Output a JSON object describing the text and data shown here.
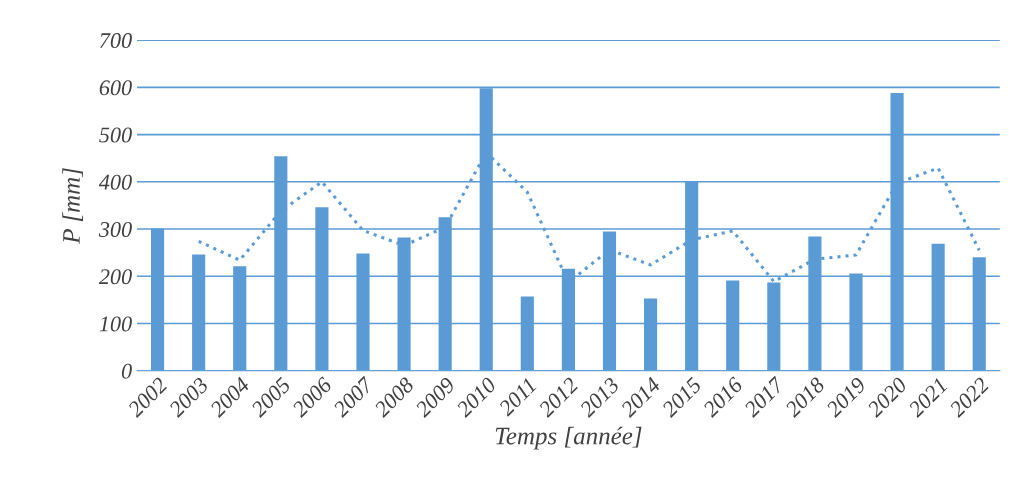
{
  "chart_data": {
    "type": "bar",
    "xlabel": "Temps [année]",
    "ylabel": "P [mm]",
    "categories": [
      "2002",
      "2003",
      "2004",
      "2005",
      "2006",
      "2007",
      "2008",
      "2009",
      "2010",
      "2011",
      "2012",
      "2013",
      "2014",
      "2015",
      "2016",
      "2017",
      "2018",
      "2019",
      "2020",
      "2021",
      "2022"
    ],
    "series": [
      {
        "color": "#5b9bd5",
        "values": [
          301,
          246,
          221,
          454,
          346,
          248,
          282,
          325,
          598,
          157,
          216,
          295,
          153,
          401,
          191,
          187,
          284,
          206,
          588,
          269,
          240
        ]
      },
      {
        "type": "line",
        "color": "#5b9bd5",
        "line_style": "dotted",
        "values": [
          null,
          274,
          234,
          338,
          400,
          297,
          265,
          304,
          462,
          378,
          187,
          256,
          224,
          277,
          296,
          189,
          236,
          245,
          397,
          429,
          255
        ]
      }
    ],
    "ylim": [
      0,
      700
    ],
    "yticks": [
      0,
      100,
      200,
      300,
      400,
      500,
      600,
      700
    ],
    "grid": "y",
    "legend": false
  }
}
